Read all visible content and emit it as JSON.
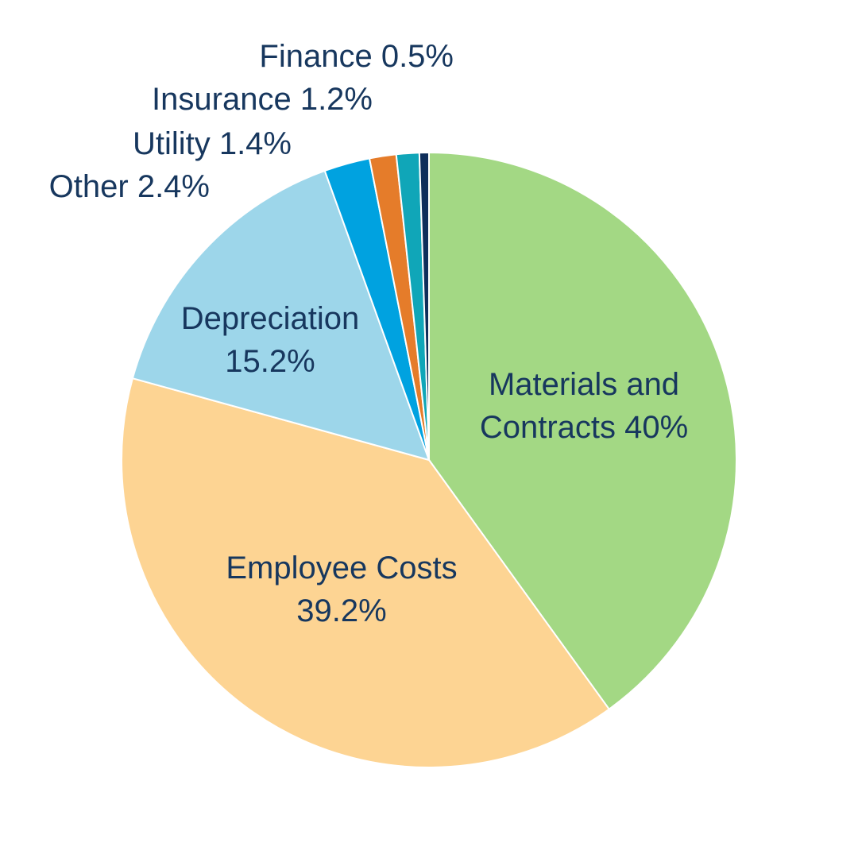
{
  "chart_data": {
    "type": "pie",
    "start_angle_deg": 0,
    "direction": "clockwise",
    "legend": "none",
    "slices": [
      {
        "name": "Materials and Contracts",
        "value": 40.0,
        "color": "#a3d884",
        "label_lines": [
          "Materials and",
          "Contracts 40%"
        ]
      },
      {
        "name": "Employee Costs",
        "value": 39.2,
        "color": "#fdd493",
        "label_lines": [
          "Employee Costs",
          "39.2%"
        ]
      },
      {
        "name": "Depreciation",
        "value": 15.2,
        "color": "#9dd6ea",
        "label_lines": [
          "Depreciation",
          "15.2%"
        ]
      },
      {
        "name": "Other",
        "value": 2.4,
        "color": "#00a2e0",
        "label_lines": [
          "Other 2.4%"
        ]
      },
      {
        "name": "Utility",
        "value": 1.4,
        "color": "#e57c2a",
        "label_lines": [
          "Utility 1.4%"
        ]
      },
      {
        "name": "Insurance",
        "value": 1.2,
        "color": "#10a6b8",
        "label_lines": [
          "Insurance 1.2%"
        ]
      },
      {
        "name": "Finance",
        "value": 0.5,
        "color": "#0e2e5a",
        "label_lines": [
          "Finance 0.5%"
        ]
      }
    ]
  }
}
